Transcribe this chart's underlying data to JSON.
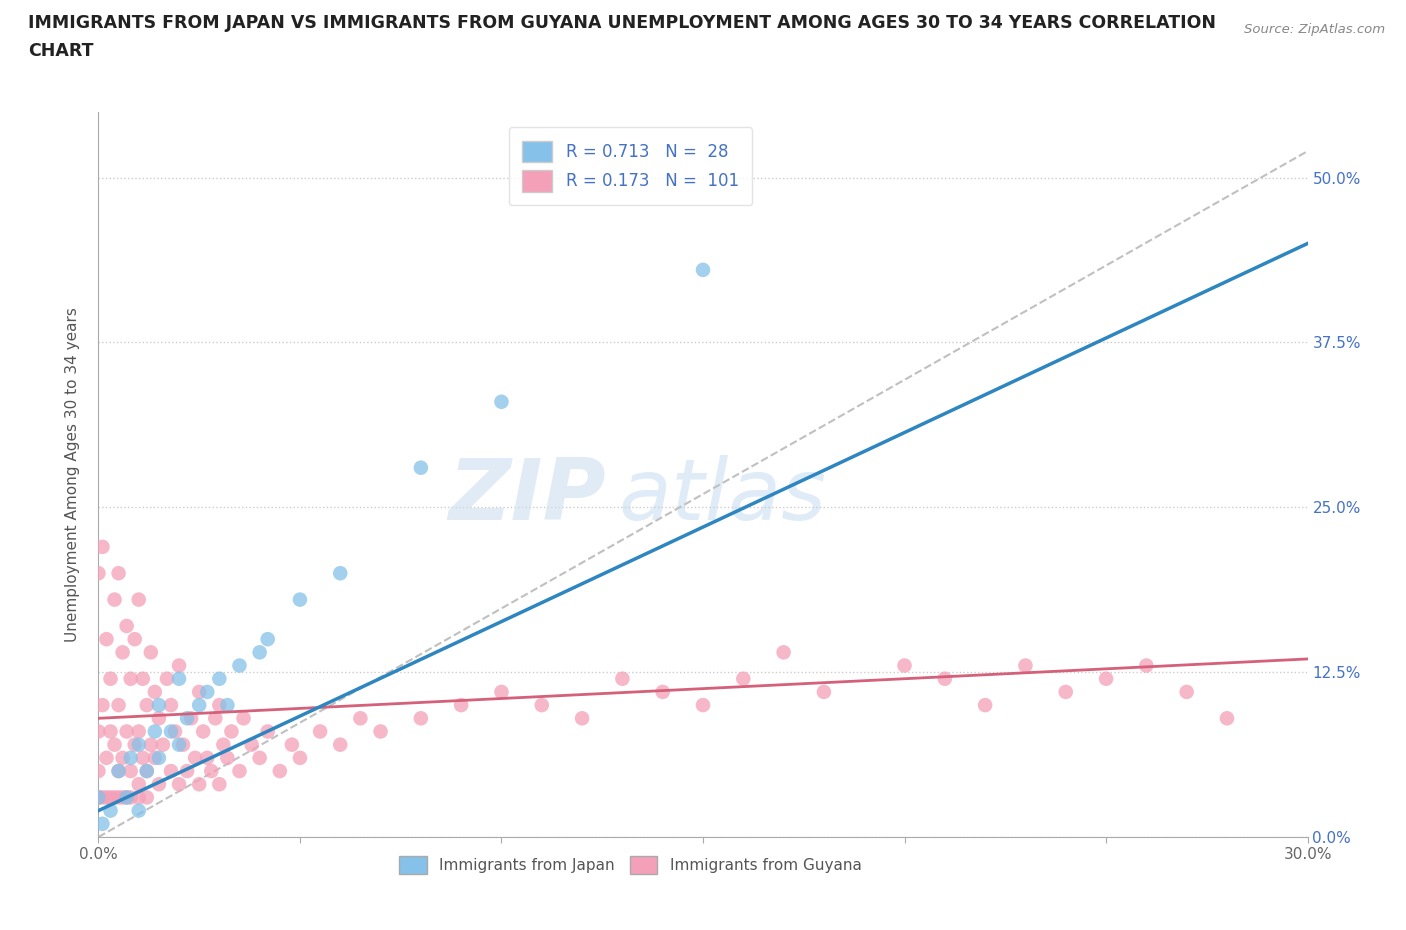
{
  "title_line1": "IMMIGRANTS FROM JAPAN VS IMMIGRANTS FROM GUYANA UNEMPLOYMENT AMONG AGES 30 TO 34 YEARS CORRELATION",
  "title_line2": "CHART",
  "source": "Source: ZipAtlas.com",
  "ylabel": "Unemployment Among Ages 30 to 34 years",
  "xlim": [
    0.0,
    0.3
  ],
  "ylim": [
    0.0,
    0.55
  ],
  "yticks": [
    0.0,
    0.125,
    0.25,
    0.375,
    0.5
  ],
  "ytick_labels": [
    "0.0%",
    "12.5%",
    "25.0%",
    "37.5%",
    "50.0%"
  ],
  "xticks": [
    0.0,
    0.05,
    0.1,
    0.15,
    0.2,
    0.25,
    0.3
  ],
  "xtick_labels": [
    "0.0%",
    "",
    "",
    "",
    "",
    "",
    "30.0%"
  ],
  "japan_color": "#85c1e8",
  "guyana_color": "#f4a0b8",
  "japan_R": 0.713,
  "japan_N": 28,
  "guyana_R": 0.173,
  "guyana_N": 101,
  "japan_line_color": "#2e86c1",
  "guyana_line_color": "#d4607a",
  "diagonal_color": "#c0c0c0",
  "watermark_zip": "ZIP",
  "watermark_atlas": "atlas",
  "background_color": "#ffffff",
  "japan_scatter_x": [
    0.0,
    0.001,
    0.003,
    0.005,
    0.007,
    0.008,
    0.01,
    0.01,
    0.012,
    0.014,
    0.015,
    0.015,
    0.018,
    0.02,
    0.02,
    0.022,
    0.025,
    0.027,
    0.03,
    0.032,
    0.035,
    0.04,
    0.042,
    0.05,
    0.06,
    0.08,
    0.1,
    0.15
  ],
  "japan_scatter_y": [
    0.03,
    0.01,
    0.02,
    0.05,
    0.03,
    0.06,
    0.02,
    0.07,
    0.05,
    0.08,
    0.06,
    0.1,
    0.08,
    0.07,
    0.12,
    0.09,
    0.1,
    0.11,
    0.12,
    0.1,
    0.13,
    0.14,
    0.15,
    0.18,
    0.2,
    0.28,
    0.33,
    0.43
  ],
  "guyana_scatter_x": [
    0.0,
    0.0,
    0.0,
    0.001,
    0.001,
    0.002,
    0.002,
    0.003,
    0.003,
    0.004,
    0.004,
    0.005,
    0.005,
    0.005,
    0.006,
    0.006,
    0.007,
    0.007,
    0.008,
    0.008,
    0.009,
    0.009,
    0.01,
    0.01,
    0.01,
    0.011,
    0.011,
    0.012,
    0.012,
    0.013,
    0.013,
    0.014,
    0.014,
    0.015,
    0.015,
    0.016,
    0.017,
    0.018,
    0.018,
    0.019,
    0.02,
    0.02,
    0.021,
    0.022,
    0.023,
    0.024,
    0.025,
    0.025,
    0.026,
    0.027,
    0.028,
    0.029,
    0.03,
    0.03,
    0.031,
    0.032,
    0.033,
    0.035,
    0.036,
    0.038,
    0.04,
    0.042,
    0.045,
    0.048,
    0.05,
    0.055,
    0.06,
    0.065,
    0.07,
    0.08,
    0.09,
    0.1,
    0.11,
    0.12,
    0.13,
    0.14,
    0.15,
    0.16,
    0.17,
    0.18,
    0.2,
    0.21,
    0.22,
    0.23,
    0.24,
    0.25,
    0.26,
    0.27,
    0.28,
    0.0,
    0.0,
    0.001,
    0.002,
    0.003,
    0.004,
    0.005,
    0.006,
    0.007,
    0.008,
    0.01,
    0.012
  ],
  "guyana_scatter_y": [
    0.05,
    0.08,
    0.2,
    0.1,
    0.22,
    0.06,
    0.15,
    0.08,
    0.12,
    0.07,
    0.18,
    0.05,
    0.1,
    0.2,
    0.06,
    0.14,
    0.08,
    0.16,
    0.05,
    0.12,
    0.07,
    0.15,
    0.04,
    0.08,
    0.18,
    0.06,
    0.12,
    0.05,
    0.1,
    0.07,
    0.14,
    0.06,
    0.11,
    0.04,
    0.09,
    0.07,
    0.12,
    0.05,
    0.1,
    0.08,
    0.04,
    0.13,
    0.07,
    0.05,
    0.09,
    0.06,
    0.04,
    0.11,
    0.08,
    0.06,
    0.05,
    0.09,
    0.04,
    0.1,
    0.07,
    0.06,
    0.08,
    0.05,
    0.09,
    0.07,
    0.06,
    0.08,
    0.05,
    0.07,
    0.06,
    0.08,
    0.07,
    0.09,
    0.08,
    0.09,
    0.1,
    0.11,
    0.1,
    0.09,
    0.12,
    0.11,
    0.1,
    0.12,
    0.14,
    0.11,
    0.13,
    0.12,
    0.1,
    0.13,
    0.11,
    0.12,
    0.13,
    0.11,
    0.09,
    0.03,
    0.03,
    0.03,
    0.03,
    0.03,
    0.03,
    0.03,
    0.03,
    0.03,
    0.03,
    0.03,
    0.03
  ]
}
